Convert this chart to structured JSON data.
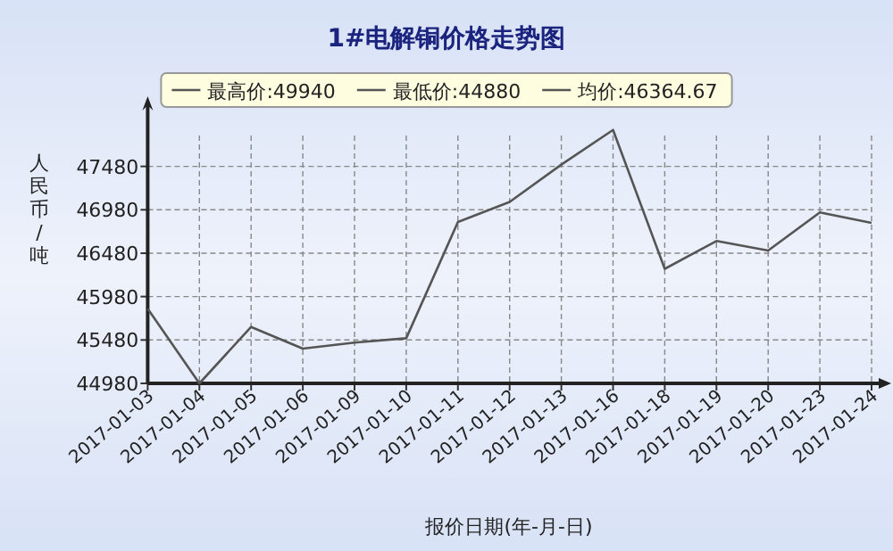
{
  "chart_data": {
    "type": "line",
    "title": "1#电解铜价格走势图",
    "xlabel": "报价日期(年-月-日)",
    "ylabel": "人民币/吨",
    "annotations": [
      "最高价:49940",
      "最低价:44880",
      "均价:46364.67"
    ],
    "categories": [
      "2017-01-03",
      "2017-01-04",
      "2017-01-05",
      "2017-01-06",
      "2017-01-09",
      "2017-01-10",
      "2017-01-11",
      "2017-01-12",
      "2017-01-13",
      "2017-01-16",
      "2017-01-18",
      "2017-01-19",
      "2017-01-20",
      "2017-01-23",
      "2017-01-24"
    ],
    "series": [
      {
        "color": "#555555",
        "values": [
          45840,
          44980,
          45630,
          45380,
          45450,
          45500,
          46840,
          47070,
          47500,
          47900,
          46300,
          46620,
          46510,
          46950,
          46830
        ]
      }
    ],
    "ylim": [
      44980,
      48000
    ],
    "yticks": [
      44980,
      45480,
      45980,
      46480,
      46980,
      47480
    ],
    "grid": true
  }
}
